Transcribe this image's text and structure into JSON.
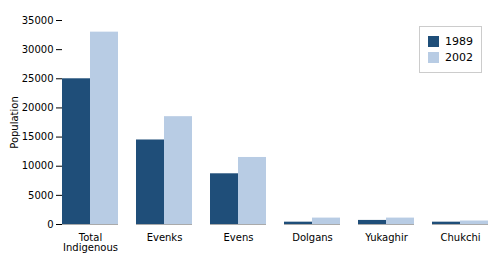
{
  "chart_data": {
    "type": "bar",
    "categories": [
      "Total\nIndigenous",
      "Evenks",
      "Evens",
      "Dolgans",
      "Yukaghir",
      "Chukchi"
    ],
    "series": [
      {
        "name": "1989",
        "color": "#1F4E79",
        "values": [
          25000,
          14500,
          8700,
          400,
          700,
          400
        ]
      },
      {
        "name": "2002",
        "color": "#B8CCE4",
        "values": [
          33000,
          18500,
          11500,
          1100,
          1100,
          600
        ]
      }
    ],
    "ylabel": "Population",
    "ylim": [
      0,
      35000
    ],
    "yticks": [
      0,
      5000,
      10000,
      15000,
      20000,
      25000,
      30000,
      35000
    ],
    "grid": false,
    "legend": "upper right"
  }
}
